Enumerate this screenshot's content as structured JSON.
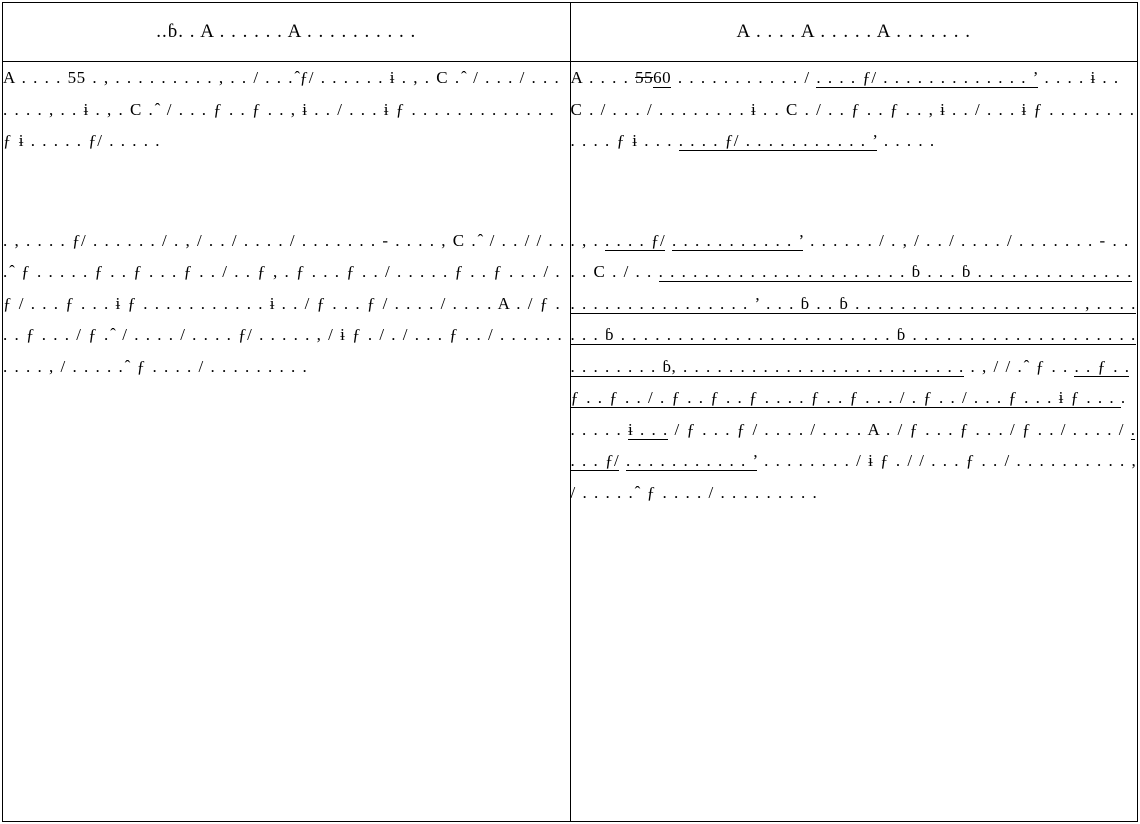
{
  "table": {
    "left_header": "  ..ɓ. . A . . . . . . A . . . . . . . . . .",
    "right_header": "A . . . . A . . . . . A . . . . . . .",
    "left_paragraphs": [
      "A . . . . 55 . , . . . . . . . . . , . . / . . . ̂ƒ/ . . . . . . ɨ . , . C . ̂ / . . . / . . . . . . . , . . ɨ . , . C . ̂ / . . . ƒ . . ƒ . . , ɨ . . / . . . ɨ ƒ . . . . . . . . . . . . . ƒ ɨ . . . . . ƒ/ . . . . .",
      ". , . . . . ƒ/ . . . . . . / . , / . . / . . . . / . . . . . . . - . . . . , C . ̂ / . . / / . . . ̂ ƒ . . . . . ƒ . . ƒ . . . ƒ . . / . . ƒ , . ƒ . . . ƒ . . / . . . . . ƒ . . ƒ . . . / . ƒ / . . . ƒ . . . ɨ ƒ . . . . . . . . . . . ɨ . . / ƒ . . . ƒ / . . . . / . . . . A . / ƒ . . . ƒ . . . / ƒ . ̂ / . . . . / . . . . ƒ/ . . . . . , / ɨ ƒ . / . / . . . ƒ . . / . . . . . . . . . . , / . . . . . ̂ ƒ . . . . / . . . . . . . . ."
    ],
    "right_paragraphs": [
      {
        "pre": "A . . . . ",
        "del_text": "55",
        "ins_text": "60",
        "post": " . . . . . . . . . . . / ",
        "ins2": ". . . . ƒ/ . . . . . . . . . . . . . ’",
        "post2": " . . . . ɨ . . C . / . . . / . . . . . . . . ɨ . . C . / . . ƒ . . ƒ . . , ɨ . . / . . . ɨ ƒ . . . . . . . . . . . . ƒ ɨ . . . ",
        "ins3": ". . . . ƒ/ . . . . . . . . . . . ’",
        "post3": " . . . . ."
      },
      {
        "pre": ". , . ",
        "ins1": ". . . . ƒ/",
        "mid": " ",
        "ins2": ". . . . . . . . . . . ’",
        "post": " . . . . . . / . , / . . / . . . . / . . . . . . . - . . . . C . / . . ",
        "ins3": ". . . . . . . . . . . . . . . . . . . . . . ɓ . . . ɓ . . . . . . . . . . . . . . . . . . . . . . . . . . . . . . ’ . . . ɓ . . ɓ . . . . . . . . . . . . . . . . . . . . , . . . . . . . ɓ . . . . . . . . . . . . . . . . . . . . . . . . ɓ . . . . . . . . . . . . . . . . . . . . . . . . . . . . ɓ, . . . . . . . . . . . . . . . . . . . . . . . . .",
        "post2": " . , / / . ̂ ƒ . . ",
        "ins4": ". . ƒ . . ƒ . . ƒ . . / . ƒ . . ƒ . . ƒ . . . . ƒ . . ƒ . . . / . ƒ . . / . . . ƒ . . . ɨ ƒ . . . ",
        "post3": " . . . . . . ",
        "ins5": "ɨ . . .",
        "post4": " / ƒ . . . ƒ / . . . . / . . . . A . / ƒ . . . ƒ . . . / ƒ . . / . . . . / ",
        "ins6": ". . . . ƒ/",
        "mid2": " ",
        "ins7": ". . . . . . . . . . . ’",
        "post5": " . . . . . . . . / ɨ ƒ . / / . . . ƒ . . / . . . . . . . . . . , / . . . . . ̂ ƒ . . . . / . . . . . . . . ."
      }
    ]
  }
}
